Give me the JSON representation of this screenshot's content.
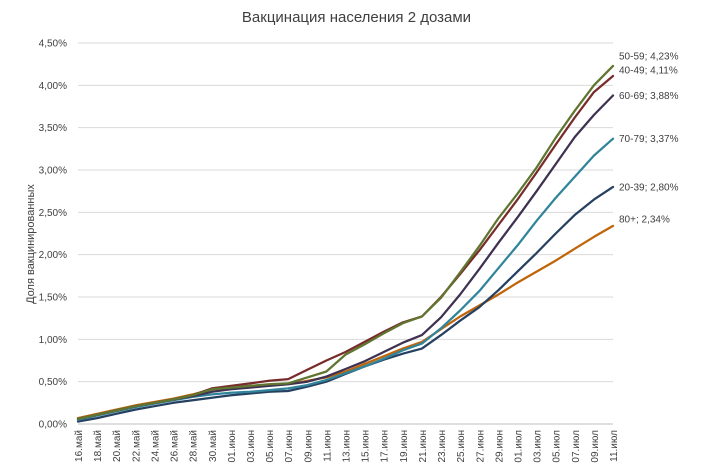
{
  "chart_data": {
    "type": "line",
    "title": "Вакцинация населения 2 дозами",
    "xlabel": "",
    "ylabel": "Доля вакцинированных",
    "ylim": [
      0,
      0.045
    ],
    "yticks": [
      "0,00%",
      "0,50%",
      "1,00%",
      "1,50%",
      "2,00%",
      "2,50%",
      "3,00%",
      "3,50%",
      "4,00%",
      "4,50%"
    ],
    "grid": true,
    "legend": "none",
    "categories": [
      "16.май",
      "18.май",
      "20.май",
      "22.май",
      "24.май",
      "26.май",
      "28.май",
      "30.май",
      "01.июн",
      "03.июн",
      "05.июн",
      "07.июн",
      "09.июн",
      "11.июн",
      "13.июн",
      "15.июн",
      "17.июн",
      "19.июн",
      "21.июн",
      "23.июн",
      "25.июн",
      "27.июн",
      "29.июн",
      "01.июл",
      "03.июл",
      "05.июл",
      "07.июл",
      "09.июл",
      "11.июл"
    ],
    "series": [
      {
        "name": "50-59",
        "label": "50-59; 4,23%",
        "color": "#5f7530",
        "values": [
          0.0006,
          0.0011,
          0.0016,
          0.0021,
          0.0025,
          0.0029,
          0.0034,
          0.0041,
          0.0043,
          0.0045,
          0.0047,
          0.0048,
          0.0055,
          0.0062,
          0.0082,
          0.0094,
          0.0107,
          0.0119,
          0.0127,
          0.0149,
          0.0179,
          0.021,
          0.0243,
          0.0272,
          0.0303,
          0.0338,
          0.037,
          0.04,
          0.0423
        ]
      },
      {
        "name": "40-49",
        "label": "40-49; 4,11%",
        "color": "#772c2a",
        "values": [
          0.0006,
          0.0011,
          0.0016,
          0.0021,
          0.0025,
          0.0029,
          0.0034,
          0.0042,
          0.0045,
          0.0048,
          0.0051,
          0.0053,
          0.0064,
          0.0075,
          0.0085,
          0.0097,
          0.0109,
          0.012,
          0.0127,
          0.015,
          0.0177,
          0.0205,
          0.0235,
          0.0265,
          0.0297,
          0.033,
          0.0362,
          0.0392,
          0.0411
        ]
      },
      {
        "name": "60-69",
        "label": "60-69; 3,88%",
        "color": "#3f3151",
        "values": [
          0.0006,
          0.0011,
          0.0016,
          0.0021,
          0.0025,
          0.0029,
          0.0033,
          0.0038,
          0.0041,
          0.0043,
          0.0045,
          0.0047,
          0.005,
          0.0056,
          0.0065,
          0.0074,
          0.0085,
          0.0096,
          0.0105,
          0.0126,
          0.0153,
          0.0183,
          0.0214,
          0.0244,
          0.0275,
          0.0307,
          0.0339,
          0.0365,
          0.0388
        ]
      },
      {
        "name": "70-79",
        "label": "70-79; 3,37%",
        "color": "#31859b",
        "values": [
          0.0005,
          0.001,
          0.0015,
          0.002,
          0.0024,
          0.0028,
          0.0032,
          0.0035,
          0.0037,
          0.0038,
          0.004,
          0.0042,
          0.0046,
          0.0052,
          0.006,
          0.0068,
          0.0077,
          0.0087,
          0.0095,
          0.0113,
          0.0134,
          0.0157,
          0.0184,
          0.0211,
          0.024,
          0.0267,
          0.0292,
          0.0317,
          0.0337
        ]
      },
      {
        "name": "20-39",
        "label": "20-39; 2,80%",
        "color": "#254061",
        "values": [
          0.0003,
          0.0007,
          0.0012,
          0.0017,
          0.0021,
          0.0025,
          0.0028,
          0.0031,
          0.0034,
          0.0036,
          0.0038,
          0.0039,
          0.0044,
          0.005,
          0.0059,
          0.0068,
          0.0076,
          0.0083,
          0.0089,
          0.0105,
          0.0122,
          0.0138,
          0.0158,
          0.018,
          0.0202,
          0.0225,
          0.0247,
          0.0265,
          0.028
        ]
      },
      {
        "name": "80+",
        "label": "80+; 2,34%",
        "color": "#c0650a",
        "values": [
          0.0007,
          0.0012,
          0.0017,
          0.0022,
          0.0026,
          0.003,
          0.0035,
          0.0041,
          0.0043,
          0.0045,
          0.0046,
          0.0047,
          0.0051,
          0.0055,
          0.0062,
          0.0071,
          0.008,
          0.0089,
          0.0097,
          0.0112,
          0.0127,
          0.014,
          0.0153,
          0.0167,
          0.018,
          0.0193,
          0.0207,
          0.0221,
          0.0234
        ]
      }
    ]
  }
}
